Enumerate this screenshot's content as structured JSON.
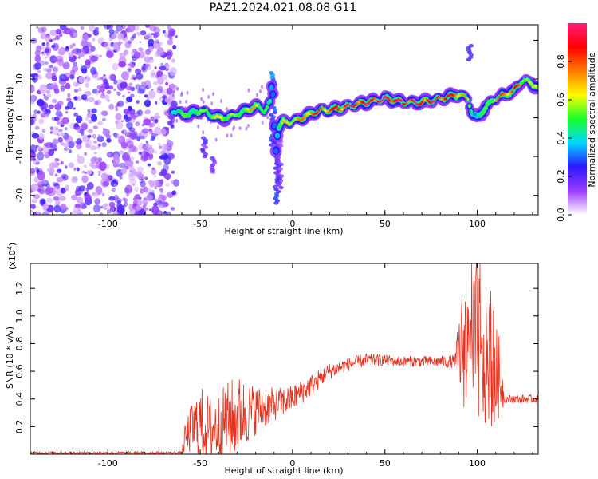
{
  "title": "PAZ1.2024.021.08.08.G11",
  "chart_data": [
    {
      "type": "heatmap",
      "xlabel": "Height of straight line (km)",
      "ylabel": "Frequency (Hz)",
      "xlim": [
        -142,
        133
      ],
      "ylim": [
        -25,
        24
      ],
      "xticks": [
        -100,
        -50,
        0,
        50,
        100
      ],
      "yticks": [
        -20,
        -10,
        0,
        10,
        20
      ],
      "noise_region_x": [
        -142,
        -65
      ],
      "ridge": {
        "x": [
          -65,
          -60,
          -55,
          -50,
          -45,
          -40,
          -35,
          -30,
          -25,
          -20,
          -15,
          -12,
          -11,
          -10,
          -9,
          -8,
          -5,
          0,
          5,
          10,
          15,
          20,
          30,
          40,
          50,
          60,
          70,
          80,
          90,
          95,
          97,
          100,
          105,
          110,
          115,
          120,
          125,
          128,
          133
        ],
        "freq": [
          2,
          1,
          1,
          2,
          1,
          0,
          0,
          1,
          2,
          3,
          2,
          4,
          10,
          0,
          -8,
          -3,
          -1,
          -1,
          0,
          1,
          2,
          2,
          3,
          4,
          5,
          4,
          4,
          5,
          6,
          5,
          1,
          0,
          3,
          5,
          6,
          7,
          10,
          9,
          8
        ],
        "amplitude": [
          0.4,
          0.5,
          0.5,
          0.5,
          0.6,
          0.6,
          0.6,
          0.5,
          0.6,
          0.7,
          0.5,
          0.4,
          0.3,
          0.3,
          0.3,
          0.4,
          0.6,
          0.7,
          0.7,
          0.8,
          0.8,
          0.8,
          0.9,
          0.9,
          1.0,
          0.9,
          0.9,
          0.9,
          0.8,
          0.6,
          0.4,
          0.4,
          0.5,
          0.7,
          0.8,
          0.8,
          0.7,
          0.6,
          0.6
        ]
      },
      "colorbar": {
        "label": "Normalized spectral amplitude",
        "ticks": [
          "0.0",
          "0.2",
          "0.4",
          "0.6",
          "0.8"
        ],
        "range": [
          0,
          1
        ],
        "colors": [
          "#ffffff",
          "#9b3cff",
          "#2b18ff",
          "#00d7ff",
          "#18ff2a",
          "#fffb00",
          "#ff7a00",
          "#ff0000",
          "#ff1b7a"
        ]
      }
    },
    {
      "type": "line",
      "xlabel": "Height of straight line (km)",
      "ylabel": "SNR (10 * v/v)",
      "y_multiplier": "(x10",
      "y_multiplier_exp": "4",
      "xlim": [
        -142,
        133
      ],
      "ylim": [
        0,
        1.38
      ],
      "xticks": [
        -100,
        -50,
        0,
        50,
        100
      ],
      "yticks": [
        "0.2",
        "0.4",
        "0.6",
        "0.8",
        "1.0",
        "1.2"
      ],
      "color": "#e8301c",
      "envelope": {
        "x": [
          -142,
          -60,
          -58,
          -55,
          -50,
          -45,
          -40,
          -35,
          -30,
          -20,
          -10,
          0,
          10,
          20,
          30,
          40,
          50,
          60,
          70,
          80,
          88,
          91,
          94,
          97,
          100,
          103,
          106,
          109,
          112,
          115,
          120,
          125,
          133
        ],
        "y": [
          0.01,
          0.01,
          0.12,
          0.18,
          0.22,
          0.18,
          0.2,
          0.25,
          0.28,
          0.32,
          0.36,
          0.4,
          0.5,
          0.6,
          0.65,
          0.68,
          0.68,
          0.67,
          0.67,
          0.67,
          0.67,
          0.75,
          0.8,
          0.7,
          0.9,
          0.55,
          0.7,
          0.6,
          0.55,
          0.4,
          0.4,
          0.4,
          0.4
        ],
        "amp": [
          0.01,
          0.01,
          0.12,
          0.18,
          0.28,
          0.25,
          0.25,
          0.28,
          0.3,
          0.18,
          0.12,
          0.1,
          0.08,
          0.06,
          0.05,
          0.05,
          0.04,
          0.04,
          0.04,
          0.04,
          0.05,
          0.4,
          0.5,
          0.5,
          0.65,
          0.45,
          0.5,
          0.4,
          0.3,
          0.03,
          0.03,
          0.03,
          0.03
        ]
      }
    }
  ]
}
